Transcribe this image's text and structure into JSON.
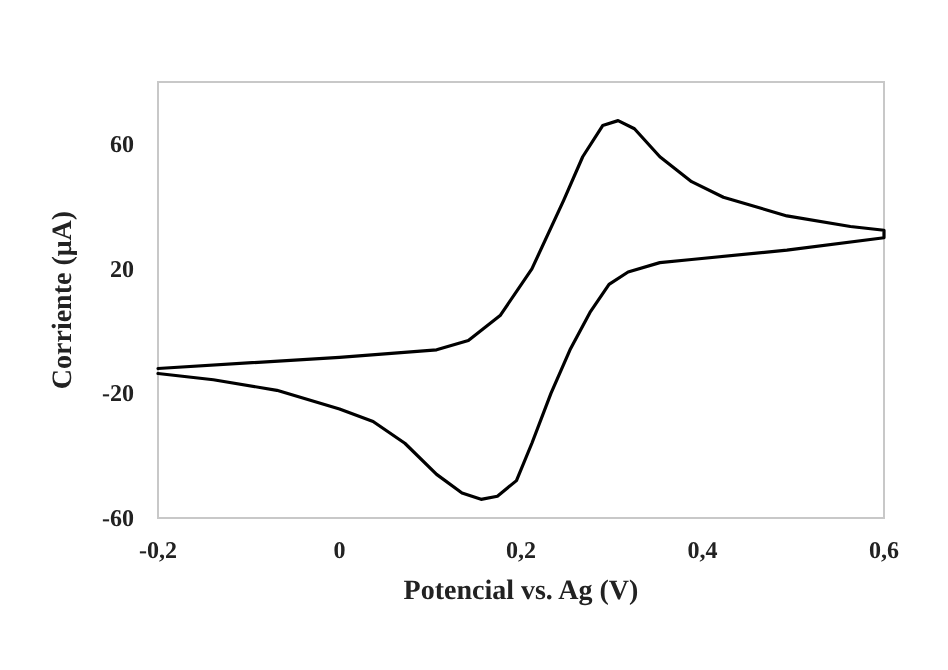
{
  "chart_data": {
    "type": "line",
    "xlabel": "Potencial vs. Ag (V)",
    "ylabel": "Corriente (μA)",
    "xlim": [
      -0.2,
      0.6
    ],
    "ylim": [
      -60,
      80
    ],
    "xticks": [
      {
        "value": -0.2,
        "label": "-0,2"
      },
      0,
      {
        "value": 0.2,
        "label": "0,2"
      },
      {
        "value": 0.4,
        "label": "0,4"
      },
      {
        "value": 0.6,
        "label": "0,6"
      }
    ],
    "yticks": [
      -60,
      -20,
      20,
      60
    ],
    "grid": false,
    "marker": "none",
    "line_style": "solid",
    "series": [
      {
        "color": "#000000",
        "x": [
          -0.2,
          0.0,
          0.107,
          0.142,
          0.177,
          0.212,
          0.247,
          0.268,
          0.29,
          0.307,
          0.325,
          0.353,
          0.388,
          0.423,
          0.493,
          0.563,
          0.6,
          0.6,
          0.493,
          0.388,
          0.353,
          0.318,
          0.297,
          0.276,
          0.254,
          0.233,
          0.212,
          0.195,
          0.174,
          0.156,
          0.135,
          0.107,
          0.072,
          0.037,
          0.0,
          -0.069,
          -0.139,
          -0.2
        ],
        "values": [
          -12,
          -8.4,
          -6,
          -3,
          5,
          20,
          42,
          56,
          66,
          67.6,
          65,
          56,
          48,
          43,
          37,
          33.6,
          32.4,
          30,
          26,
          23,
          22,
          19,
          15,
          6,
          -6,
          -20,
          -36,
          -48,
          -53,
          -54,
          -52,
          -46,
          -36,
          -29,
          -25,
          -19,
          -15.6,
          -13.6
        ]
      }
    ]
  }
}
